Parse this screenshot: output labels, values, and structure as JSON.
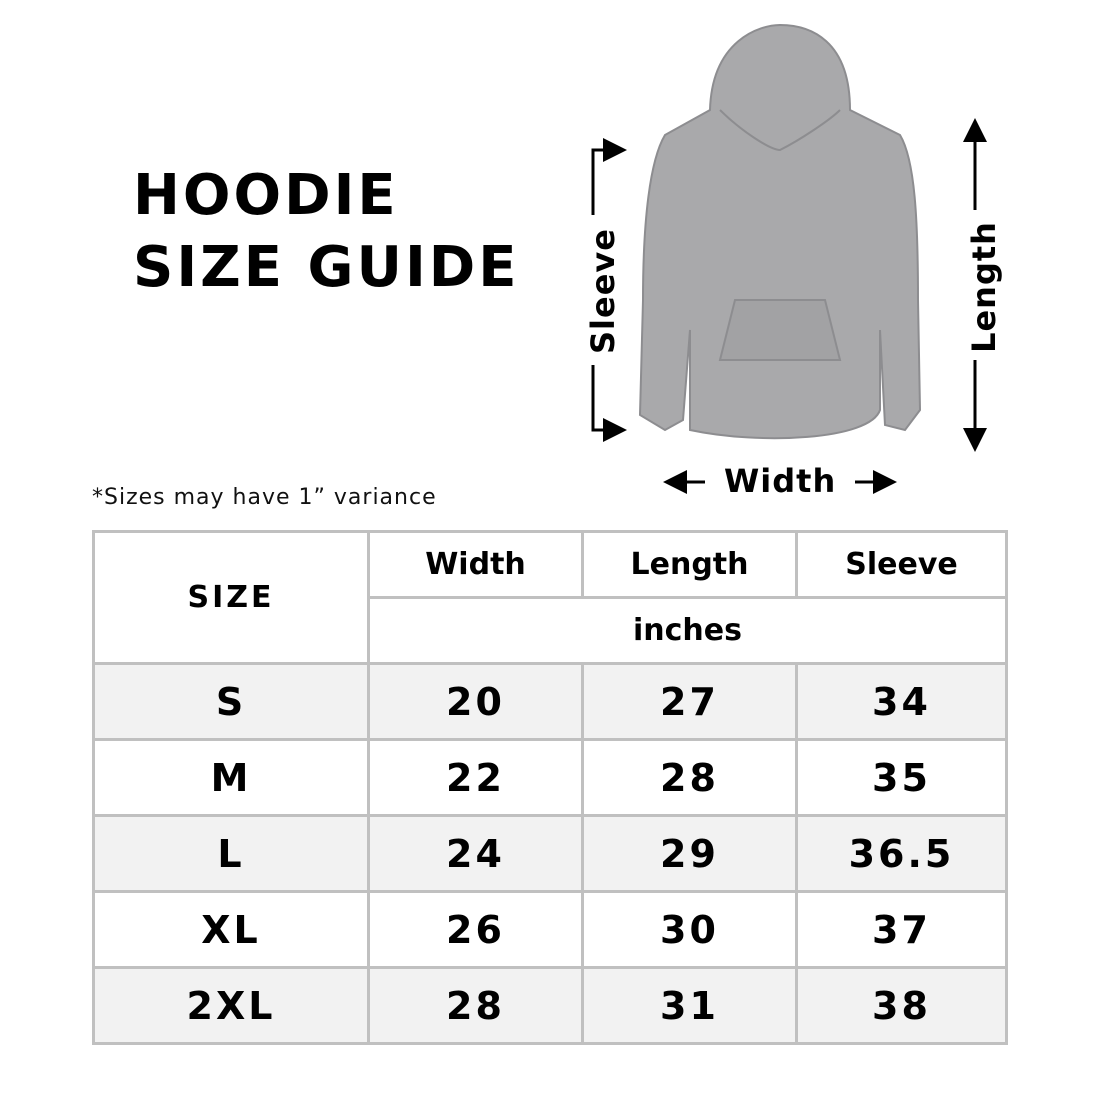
{
  "title": {
    "line1": "HOODIE",
    "line2": "SIZE GUIDE"
  },
  "diagram": {
    "sleeve_label": "Sleeve",
    "length_label": "Length",
    "width_label": "Width",
    "garment_color": "#a9a9ab"
  },
  "note": "*Sizes may have 1” variance",
  "table": {
    "size_header": "SIZE",
    "columns": [
      "Width",
      "Length",
      "Sleeve"
    ],
    "unit": "inches",
    "rows": [
      {
        "size": "S",
        "width": "20",
        "length": "27",
        "sleeve": "34"
      },
      {
        "size": "M",
        "width": "22",
        "length": "28",
        "sleeve": "35"
      },
      {
        "size": "L",
        "width": "24",
        "length": "29",
        "sleeve": "36.5"
      },
      {
        "size": "XL",
        "width": "26",
        "length": "30",
        "sleeve": "37"
      },
      {
        "size": "2XL",
        "width": "28",
        "length": "31",
        "sleeve": "38"
      }
    ]
  }
}
